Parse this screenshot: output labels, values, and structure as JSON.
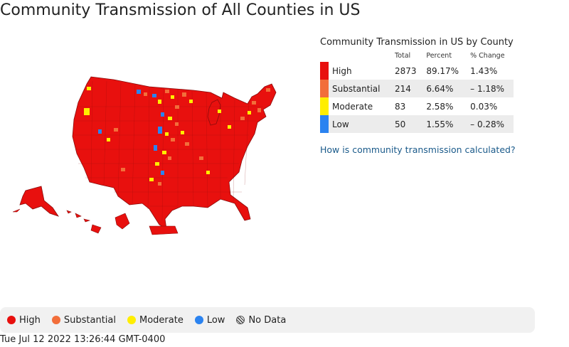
{
  "page": {
    "title": "Community Transmission of All Counties in US",
    "timestamp": "Tue Jul 12 2022 13:26:44 GMT-0400"
  },
  "colors": {
    "high": "#e8100e",
    "substantial": "#f26e3a",
    "moderate": "#ffee00",
    "low": "#2b83f0",
    "county_border": "#8a0c0c"
  },
  "stats": {
    "title": "Community Transmission in US by County",
    "headers": {
      "total": "Total",
      "percent": "Percent",
      "change": "% Change"
    },
    "rows": [
      {
        "level": "High",
        "total": "2873",
        "percent": "89.17%",
        "change": "1.43%"
      },
      {
        "level": "Substantial",
        "total": "214",
        "percent": "6.64%",
        "change": "– 1.18%"
      },
      {
        "level": "Moderate",
        "total": "83",
        "percent": "2.58%",
        "change": "0.03%"
      },
      {
        "level": "Low",
        "total": "50",
        "percent": "1.55%",
        "change": "– 0.28%"
      }
    ],
    "link_text": "How is community transmission calculated?"
  },
  "legend": {
    "high": "High",
    "substantial": "Substantial",
    "moderate": "Moderate",
    "low": "Low",
    "no_data": "No Data"
  },
  "map": {
    "dominant_level": "High",
    "icon": "us-county-map"
  }
}
